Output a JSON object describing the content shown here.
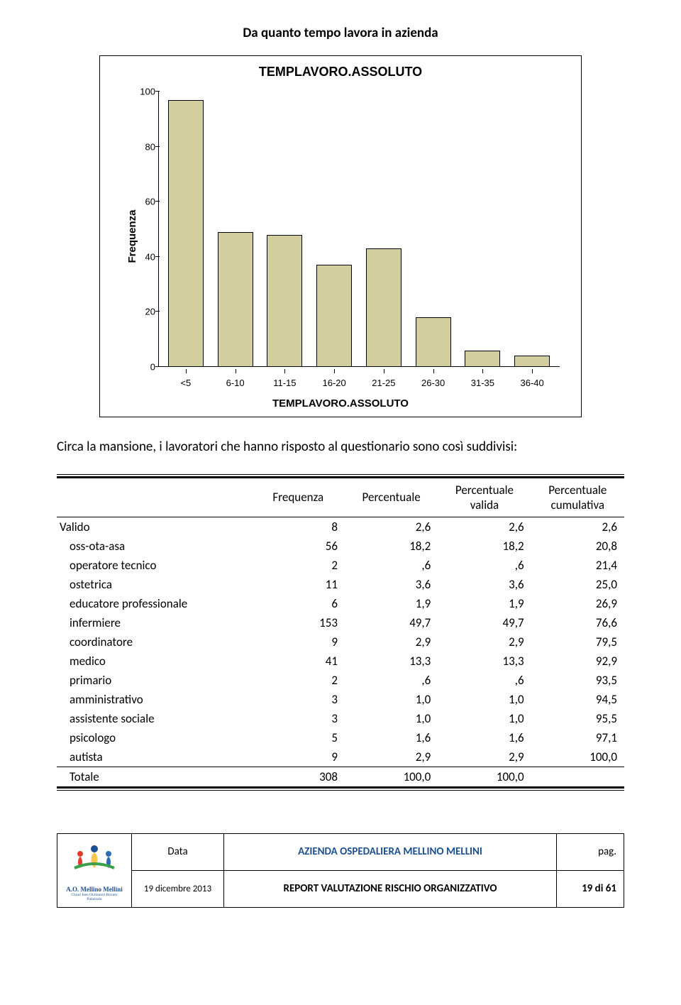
{
  "section_title": "Da quanto tempo lavora in azienda",
  "chart": {
    "type": "bar",
    "title": "TEMPLAVORO.ASSOLUTO",
    "ylabel": "Frequenza",
    "xlabel": "TEMPLAVORO.ASSOLUTO",
    "ylim": [
      0,
      100
    ],
    "ytick_step": 20,
    "yticks": [
      "0",
      "20",
      "40",
      "60",
      "80",
      "100"
    ],
    "categories": [
      "<5",
      "6-10",
      "11-15",
      "16-20",
      "21-25",
      "26-30",
      "31-35",
      "36-40"
    ],
    "values": [
      97,
      49,
      48,
      37,
      43,
      18,
      6,
      4
    ],
    "bar_color": "#d3ce9e",
    "bar_border": "#000000",
    "background": "#ffffff"
  },
  "body_text": "Circa la mansione, i lavoratori che hanno risposto al questionario sono così suddivisi:",
  "table": {
    "columns": [
      "",
      "Frequenza",
      "Percentuale",
      "Percentuale valida",
      "Percentuale cumulativa"
    ],
    "rows": [
      {
        "label": "Valido",
        "indent": 0,
        "freq": "8",
        "pct": "2,6",
        "pctv": "2,6",
        "pctc": "2,6"
      },
      {
        "label": "oss-ota-asa",
        "indent": 1,
        "freq": "56",
        "pct": "18,2",
        "pctv": "18,2",
        "pctc": "20,8"
      },
      {
        "label": "operatore tecnico",
        "indent": 1,
        "freq": "2",
        "pct": ",6",
        "pctv": ",6",
        "pctc": "21,4"
      },
      {
        "label": "ostetrica",
        "indent": 1,
        "freq": "11",
        "pct": "3,6",
        "pctv": "3,6",
        "pctc": "25,0"
      },
      {
        "label": "educatore professionale",
        "indent": 1,
        "freq": "6",
        "pct": "1,9",
        "pctv": "1,9",
        "pctc": "26,9"
      },
      {
        "label": "infermiere",
        "indent": 1,
        "freq": "153",
        "pct": "49,7",
        "pctv": "49,7",
        "pctc": "76,6"
      },
      {
        "label": "coordinatore",
        "indent": 1,
        "freq": "9",
        "pct": "2,9",
        "pctv": "2,9",
        "pctc": "79,5"
      },
      {
        "label": "medico",
        "indent": 1,
        "freq": "41",
        "pct": "13,3",
        "pctv": "13,3",
        "pctc": "92,9"
      },
      {
        "label": "primario",
        "indent": 1,
        "freq": "2",
        "pct": ",6",
        "pctv": ",6",
        "pctc": "93,5"
      },
      {
        "label": "amministrativo",
        "indent": 1,
        "freq": "3",
        "pct": "1,0",
        "pctv": "1,0",
        "pctc": "94,5"
      },
      {
        "label": "assistente sociale",
        "indent": 1,
        "freq": "3",
        "pct": "1,0",
        "pctv": "1,0",
        "pctc": "95,5"
      },
      {
        "label": "psicologo",
        "indent": 1,
        "freq": "5",
        "pct": "1,6",
        "pctv": "1,6",
        "pctc": "97,1"
      },
      {
        "label": "autista",
        "indent": 1,
        "freq": "9",
        "pct": "2,9",
        "pctv": "2,9",
        "pctc": "100,0"
      }
    ],
    "total": {
      "label": "Totale",
      "freq": "308",
      "pct": "100,0",
      "pctv": "100,0",
      "pctc": ""
    }
  },
  "footer": {
    "data_label": "Data",
    "org": "AZIENDA OSPEDALIERA MELLINO MELLINI",
    "pag_prefix": "pag.",
    "date": "19 dicembre 2013",
    "report": "REPORT VALUTAZIONE RISCHIO ORGANIZZATIVO",
    "page_info": "19 di 61",
    "logo_text": "A.O. Mellino Mellini",
    "logo_sub": "Chiari Iseo Orzinuovi Rovato Palazzolo",
    "logo_colors": {
      "body": "#f7c84b",
      "head": "#1b4f8f",
      "red": "#e33c2f",
      "blue": "#2e6bb5",
      "green": "#3aa14a"
    }
  }
}
